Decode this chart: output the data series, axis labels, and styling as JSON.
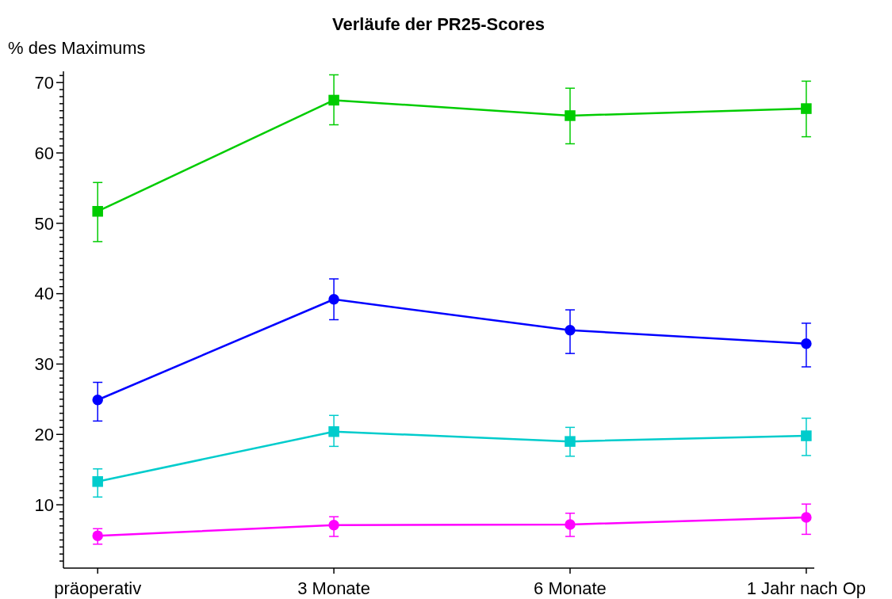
{
  "chart_data": {
    "type": "line",
    "title": "Verläufe der PR25-Scores",
    "ylabel": "% des Maximums",
    "categories": [
      "präoperativ",
      "3 Monate",
      "6 Monate",
      "1 Jahr nach Op"
    ],
    "ylim": [
      1,
      71.6
    ],
    "yticks": [
      {
        "value": 2,
        "label": null
      },
      {
        "value": 3,
        "label": null
      },
      {
        "value": 4,
        "label": null
      },
      {
        "value": 5,
        "label": null
      },
      {
        "value": 6,
        "label": null
      },
      {
        "value": 7,
        "label": null
      },
      {
        "value": 8,
        "label": null
      },
      {
        "value": 9,
        "label": null
      },
      10,
      {
        "value": 11,
        "label": null
      },
      {
        "value": 12,
        "label": null
      },
      {
        "value": 13,
        "label": null
      },
      {
        "value": 14,
        "label": null
      },
      {
        "value": 15,
        "label": null
      },
      {
        "value": 16,
        "label": null
      },
      {
        "value": 17,
        "label": null
      },
      {
        "value": 18,
        "label": null
      },
      {
        "value": 19,
        "label": null
      },
      20,
      {
        "value": 21,
        "label": null
      },
      {
        "value": 22,
        "label": null
      },
      {
        "value": 23,
        "label": null
      },
      {
        "value": 24,
        "label": null
      },
      {
        "value": 25,
        "label": null
      },
      {
        "value": 26,
        "label": null
      },
      {
        "value": 27,
        "label": null
      },
      {
        "value": 28,
        "label": null
      },
      {
        "value": 29,
        "label": null
      },
      30,
      {
        "value": 31,
        "label": null
      },
      {
        "value": 32,
        "label": null
      },
      {
        "value": 33,
        "label": null
      },
      {
        "value": 34,
        "label": null
      },
      {
        "value": 35,
        "label": null
      },
      {
        "value": 36,
        "label": null
      },
      {
        "value": 37,
        "label": null
      },
      {
        "value": 38,
        "label": null
      },
      {
        "value": 39,
        "label": null
      },
      40,
      {
        "value": 41,
        "label": null
      },
      {
        "value": 42,
        "label": null
      },
      {
        "value": 43,
        "label": null
      },
      {
        "value": 44,
        "label": null
      },
      {
        "value": 45,
        "label": null
      },
      {
        "value": 46,
        "label": null
      },
      {
        "value": 47,
        "label": null
      },
      {
        "value": 48,
        "label": null
      },
      {
        "value": 49,
        "label": null
      },
      50,
      {
        "value": 51,
        "label": null
      },
      {
        "value": 52,
        "label": null
      },
      {
        "value": 53,
        "label": null
      },
      {
        "value": 54,
        "label": null
      },
      {
        "value": 55,
        "label": null
      },
      {
        "value": 56,
        "label": null
      },
      {
        "value": 57,
        "label": null
      },
      {
        "value": 58,
        "label": null
      },
      {
        "value": 59,
        "label": null
      },
      60,
      {
        "value": 61,
        "label": null
      },
      {
        "value": 62,
        "label": null
      },
      {
        "value": 63,
        "label": null
      },
      {
        "value": 64,
        "label": null
      },
      {
        "value": 65,
        "label": null
      },
      {
        "value": 66,
        "label": null
      },
      {
        "value": 67,
        "label": null
      },
      {
        "value": 68,
        "label": null
      },
      {
        "value": 69,
        "label": null
      },
      70,
      {
        "value": 71,
        "label": null
      }
    ],
    "grid": false,
    "line_style": "solid",
    "series": [
      {
        "color": "#00cc00",
        "marker": "square",
        "values": [
          51.7,
          67.5,
          65.3,
          66.3
        ],
        "errors": [
          [
            47.4,
            55.8
          ],
          [
            64.0,
            71.1
          ],
          [
            61.3,
            69.2
          ],
          [
            62.3,
            70.2
          ]
        ]
      },
      {
        "color": "#0000ff",
        "marker": "circle",
        "values": [
          24.9,
          39.2,
          34.8,
          32.9
        ],
        "errors": [
          [
            21.9,
            27.4
          ],
          [
            36.3,
            42.1
          ],
          [
            31.5,
            37.7
          ],
          [
            29.6,
            35.8
          ]
        ]
      },
      {
        "color": "#00cccc",
        "marker": "square",
        "values": [
          13.3,
          20.4,
          19.0,
          19.8
        ],
        "errors": [
          [
            11.1,
            15.1
          ],
          [
            18.3,
            22.7
          ],
          [
            16.9,
            21.0
          ],
          [
            17.0,
            22.3
          ]
        ]
      },
      {
        "color": "#ff00ff",
        "marker": "circle",
        "values": [
          5.6,
          7.1,
          7.2,
          8.2
        ],
        "errors": [
          [
            4.4,
            6.6
          ],
          [
            5.5,
            8.3
          ],
          [
            5.5,
            8.8
          ],
          [
            5.8,
            10.1
          ]
        ]
      }
    ]
  }
}
